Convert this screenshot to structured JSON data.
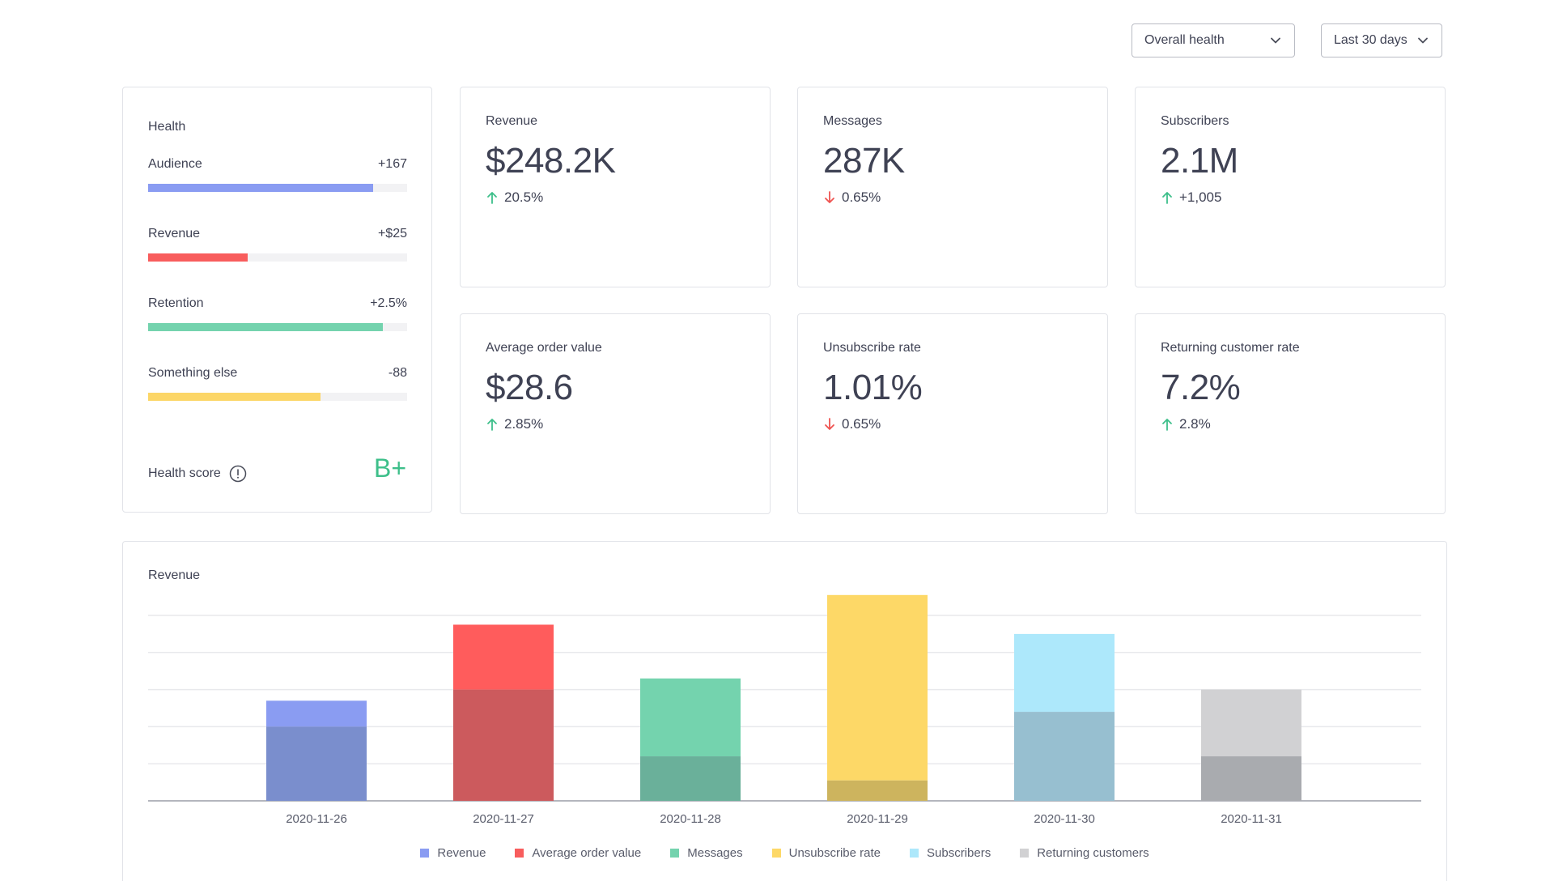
{
  "filters": {
    "health_select": "Overall health",
    "range_select": "Last 30 days"
  },
  "health": {
    "title": "Health",
    "rows": [
      {
        "label": "Audience",
        "value": "+167",
        "fill": 0.87,
        "color": "#8a9cf2"
      },
      {
        "label": "Revenue",
        "value": "+$25",
        "fill": 0.385,
        "color": "#f85d5d"
      },
      {
        "label": "Retention",
        "value": "+2.5%",
        "fill": 0.905,
        "color": "#74d3ae"
      },
      {
        "label": "Something else",
        "value": "-88",
        "fill": 0.665,
        "color": "#fcd667"
      }
    ],
    "score_label": "Health score",
    "score_value": "B+"
  },
  "metrics": {
    "revenue": {
      "title": "Revenue",
      "value": "$248.2K",
      "delta": "20.5%",
      "direction": "up"
    },
    "messages": {
      "title": "Messages",
      "value": "287K",
      "delta": "0.65%",
      "direction": "down"
    },
    "subscribers": {
      "title": "Subscribers",
      "value": "2.1M",
      "delta": "+1,005",
      "direction": "up"
    },
    "aov": {
      "title": "Average order value",
      "value": "$28.6",
      "delta": "2.85%",
      "direction": "up"
    },
    "unsub": {
      "title": "Unsubscribe rate",
      "value": "1.01%",
      "delta": "0.65%",
      "direction": "down"
    },
    "returning": {
      "title": "Returning customer rate",
      "value": "7.2%",
      "delta": "2.8%",
      "direction": "up"
    }
  },
  "colors": {
    "up": "#3dbf8a",
    "down": "#ef5350"
  },
  "chart_data": {
    "type": "bar",
    "title": "Revenue",
    "categories": [
      "2020-11-26",
      "2020-11-27",
      "2020-11-28",
      "2020-11-29",
      "2020-11-30",
      "2020-11-31"
    ],
    "ylim": [
      0,
      5
    ],
    "grid": true,
    "legend_position": "bottom",
    "bars": [
      {
        "category": "2020-11-26",
        "series": "Revenue",
        "total": 2.7,
        "lower": 2.0,
        "color": "#8a9cf2",
        "lower_color": "#7a8ecd"
      },
      {
        "category": "2020-11-27",
        "series": "Average order value",
        "total": 4.75,
        "lower": 3.0,
        "color": "#ff5c5c",
        "lower_color": "#cc5a5d"
      },
      {
        "category": "2020-11-28",
        "series": "Messages",
        "total": 3.3,
        "lower": 1.2,
        "color": "#74d3ae",
        "lower_color": "#6ab09a"
      },
      {
        "category": "2020-11-29",
        "series": "Unsubscribe rate",
        "total": 5.55,
        "lower": 0.55,
        "color": "#fdd867",
        "lower_color": "#cdb45e"
      },
      {
        "category": "2020-11-30",
        "series": "Subscribers",
        "total": 4.5,
        "lower": 2.4,
        "color": "#ade8fb",
        "lower_color": "#97bfd0"
      },
      {
        "category": "2020-11-31",
        "series": "Returning customers",
        "total": 3.0,
        "lower": 1.2,
        "color": "#d1d1d3",
        "lower_color": "#a9abaf"
      }
    ],
    "legend": [
      {
        "name": "Revenue",
        "color": "#8a9cf2"
      },
      {
        "name": "Average order value",
        "color": "#f85d5d"
      },
      {
        "name": "Messages",
        "color": "#74d3ae"
      },
      {
        "name": "Unsubscribe rate",
        "color": "#fdd867"
      },
      {
        "name": "Subscribers",
        "color": "#ade8fb"
      },
      {
        "name": "Returning customers",
        "color": "#d1d1d3"
      }
    ]
  }
}
